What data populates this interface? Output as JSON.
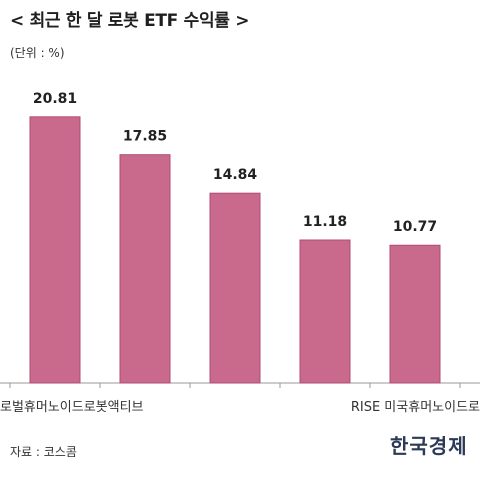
{
  "header": {
    "title": "< 최근 한 달 로봇 ETF 수익률 >",
    "unit": "(단위 : %)"
  },
  "footer": {
    "source": "자료 : 코스콤",
    "logo_text": "한국경제"
  },
  "colors": {
    "bar": "#c9698c",
    "bar_stroke": "#b04d74",
    "axis": "#9a9a9a"
  },
  "chart_data": {
    "type": "bar",
    "title": "< 최근 한 달 로봇 ETF 수익률 >",
    "ylabel": "(단위 : %)",
    "xlabel": "",
    "categories": [
      "로벌휴머노이드로봇액티브",
      "",
      "",
      "RISE 미국휴머노이드로",
      ""
    ],
    "values": [
      20.81,
      17.85,
      14.84,
      11.18,
      10.77
    ],
    "value_labels": [
      "20.81",
      "17.85",
      "14.84",
      "11.18",
      "10.77"
    ],
    "ylim": [
      0,
      21.5
    ],
    "grid": false,
    "legend": "none"
  }
}
